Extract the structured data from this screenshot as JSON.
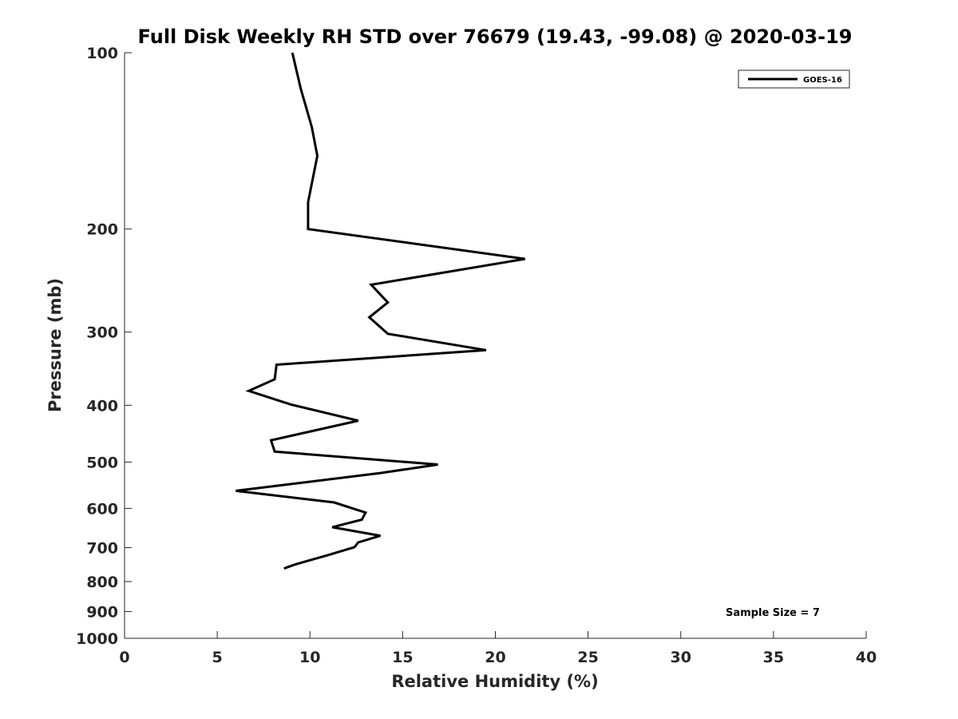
{
  "chart_data": {
    "type": "line",
    "title": "Full Disk Weekly RH STD over 76679 (19.43, -99.08) @ 2020-03-19",
    "xlabel": "Relative Humidity (%)",
    "ylabel": "Pressure (mb)",
    "xlim": [
      0,
      40
    ],
    "ylim": [
      100,
      1000
    ],
    "y_scale": "log",
    "y_reversed": true,
    "x_ticks": [
      0,
      5,
      10,
      15,
      20,
      25,
      30,
      35,
      40
    ],
    "x_tick_labels": [
      "0",
      "5",
      "10",
      "15",
      "20",
      "25",
      "30",
      "35",
      "40"
    ],
    "y_ticks": [
      100,
      200,
      300,
      400,
      500,
      600,
      700,
      800,
      900,
      1000
    ],
    "y_tick_labels": [
      "100",
      "200",
      "300",
      "400",
      "500",
      "600",
      "700",
      "800",
      "900",
      "1000"
    ],
    "grid": false,
    "legend": {
      "placement": "top-right",
      "entries": [
        "GOES-16"
      ]
    },
    "series": [
      {
        "name": "GOES-16",
        "color": "#000000",
        "x": [
          9.05,
          9.5,
          10.1,
          10.4,
          9.9,
          9.9,
          21.6,
          13.3,
          14.2,
          13.2,
          14.2,
          19.5,
          8.2,
          8.1,
          6.7,
          9.0,
          12.6,
          7.9,
          8.1,
          16.9,
          13.8,
          6.0,
          11.3,
          13.0,
          12.8,
          11.2,
          13.8,
          12.6,
          12.4,
          10.9,
          9.2,
          8.6
        ],
        "y": [
          100,
          115,
          134,
          150,
          180,
          200,
          225,
          249,
          267,
          283,
          302,
          322,
          341,
          361,
          378,
          399,
          425,
          459,
          480,
          505,
          522,
          560,
          586,
          610,
          627,
          646,
          668,
          686,
          699,
          722,
          748,
          760
        ]
      }
    ],
    "annotations": [
      "Sample Size = 7"
    ]
  }
}
